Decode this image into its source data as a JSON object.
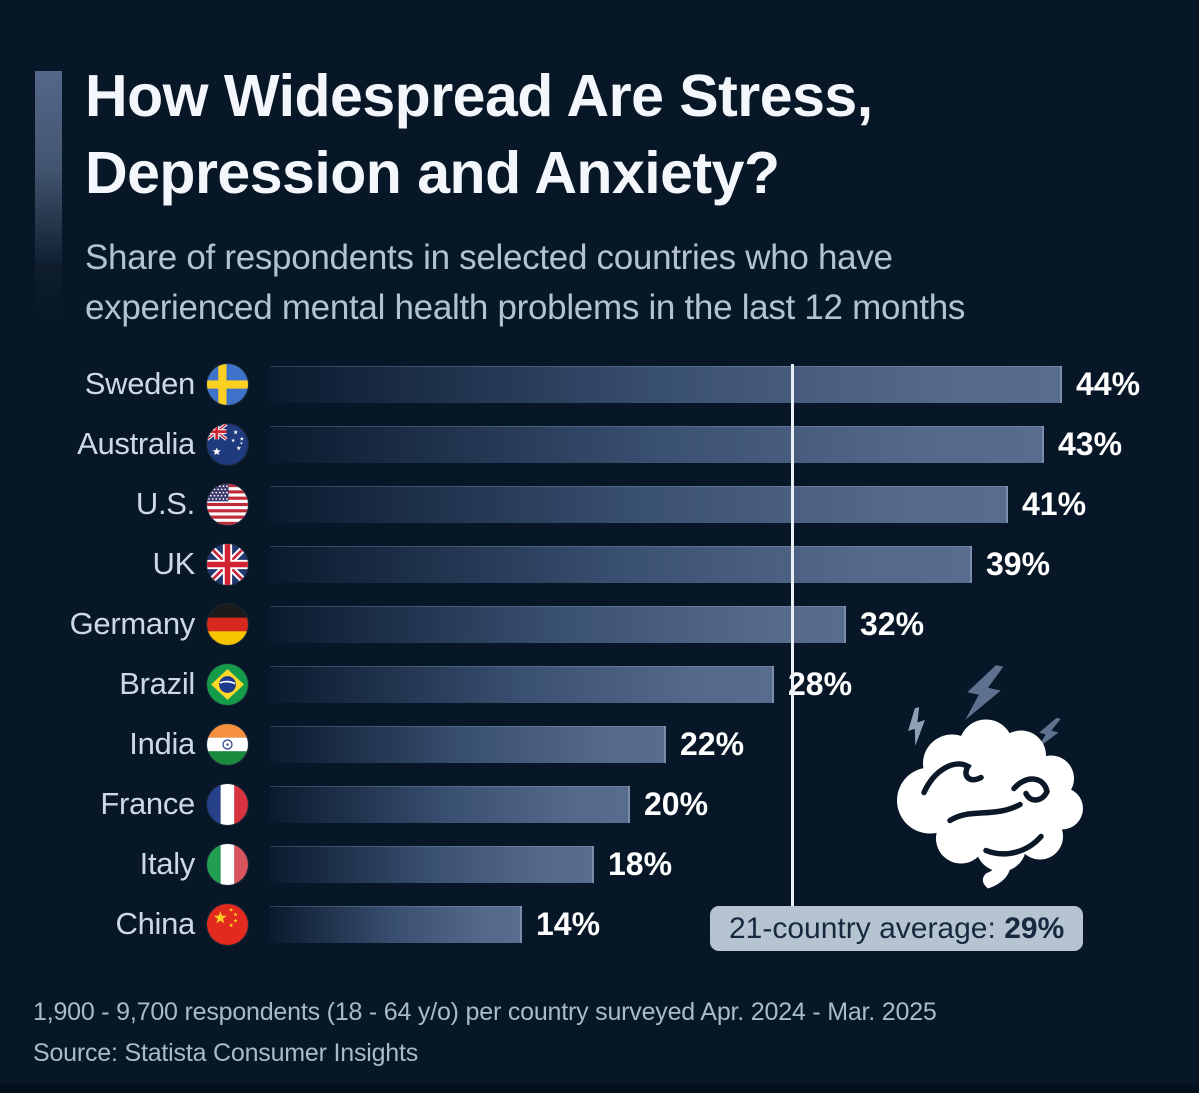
{
  "page": {
    "title_line1": "How Widespread Are Stress,",
    "title_line2": "Depression and Anxiety?",
    "subtitle_line1": "Share of respondents in selected countries who have",
    "subtitle_line2": "experienced mental health problems in the last 12 months"
  },
  "chart_data": {
    "type": "bar",
    "orientation": "horizontal",
    "title": "How Widespread Are Stress, Depression and Anxiety?",
    "subtitle": "Share of respondents in selected countries who have experienced mental health problems in the last 12 months",
    "unit": "%",
    "xlim": [
      0,
      47
    ],
    "grid": false,
    "categories": [
      "Sweden",
      "Australia",
      "U.S.",
      "UK",
      "Germany",
      "Brazil",
      "India",
      "France",
      "Italy",
      "China"
    ],
    "values": [
      44,
      43,
      41,
      39,
      32,
      28,
      22,
      20,
      18,
      14
    ],
    "value_labels": [
      "44%",
      "43%",
      "41%",
      "39%",
      "32%",
      "28%",
      "22%",
      "20%",
      "18%",
      "14%"
    ],
    "flag_icons": [
      "sweden-flag",
      "australia-flag",
      "us-flag",
      "uk-flag",
      "germany-flag",
      "brazil-flag",
      "india-flag",
      "france-flag",
      "italy-flag",
      "china-flag"
    ],
    "average_line": {
      "value": 29,
      "label": "21-country average: 29%"
    }
  },
  "average_badge": {
    "prefix": "21-country average:",
    "value": "29%"
  },
  "decoration": {
    "icon": "brain-with-lightning-icon"
  },
  "footer": {
    "note": "1,900 - 9,700 respondents (18 - 64 y/o) per country surveyed Apr. 2024 - Mar. 2025",
    "source": "Source: Statista Consumer Insights"
  },
  "colors": {
    "background": "#081727",
    "bar_end": "#576c8e",
    "title_text": "#f3f7fb",
    "subtitle_text": "#b3c2d2",
    "country_text": "#ccd9e4",
    "value_text": "#ffffff",
    "footer_text": "#a9bac9",
    "badge_bg": "#b6c4d2",
    "badge_text": "#16293f",
    "line_color": "#e9eff5"
  }
}
